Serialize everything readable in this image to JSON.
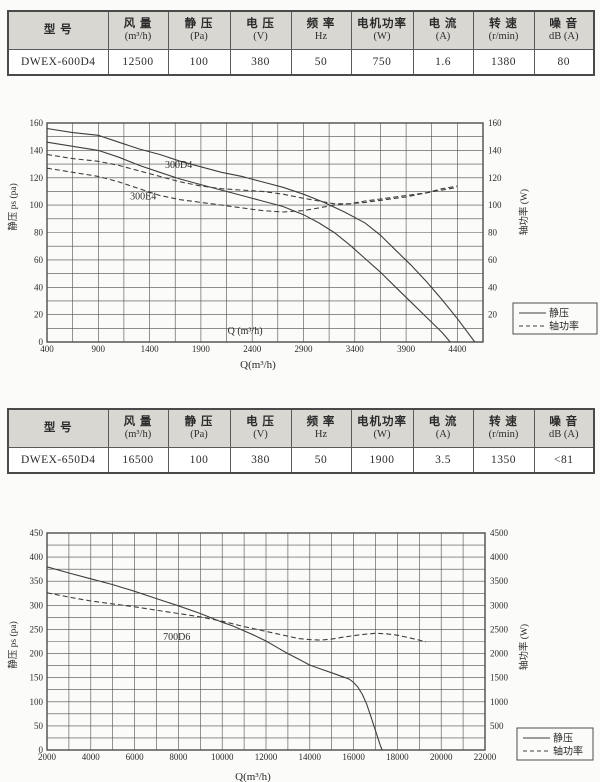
{
  "colors": {
    "header_bg": "#d8d7d2",
    "grid": "#4d4d4d",
    "line": "#3f3f3f",
    "text": "#2b2b2b"
  },
  "tables": [
    {
      "headers": [
        {
          "l1": "型  号",
          "l2": ""
        },
        {
          "l1": "风 量",
          "l2": "(m³/h)"
        },
        {
          "l1": "静 压",
          "l2": "(Pa)"
        },
        {
          "l1": "电 压",
          "l2": "(V)"
        },
        {
          "l1": "频 率",
          "l2": "Hz"
        },
        {
          "l1": "电机功率",
          "l2": "(W)"
        },
        {
          "l1": "电 流",
          "l2": "(A)"
        },
        {
          "l1": "转 速",
          "l2": "(r/min)"
        },
        {
          "l1": "噪 音",
          "l2": "dB (A)"
        }
      ],
      "row": [
        "DWEX-600D4",
        "12500",
        "100",
        "380",
        "50",
        "750",
        "1.6",
        "1380",
        "80"
      ]
    },
    {
      "headers": [
        {
          "l1": "型  号",
          "l2": ""
        },
        {
          "l1": "风 量",
          "l2": "(m³/h)"
        },
        {
          "l1": "静 压",
          "l2": "(Pa)"
        },
        {
          "l1": "电 压",
          "l2": "(V)"
        },
        {
          "l1": "频 率",
          "l2": "Hz"
        },
        {
          "l1": "电机功率",
          "l2": "(W)"
        },
        {
          "l1": "电 流",
          "l2": "(A)"
        },
        {
          "l1": "转 速",
          "l2": "(r/min)"
        },
        {
          "l1": "噪 音",
          "l2": "dB (A)"
        }
      ],
      "row": [
        "DWEX-650D4",
        "16500",
        "100",
        "380",
        "50",
        "1900",
        "3.5",
        "1350",
        "<81"
      ]
    }
  ],
  "chart_data": [
    {
      "type": "line",
      "xlabel": "Q(m³/h)",
      "ylabel_left": "静压 ps (pa)",
      "ylabel_right": "轴功率 (W)",
      "xlim": [
        400,
        4650
      ],
      "ylim_left": [
        0,
        160
      ],
      "ylim_right": [
        0,
        160
      ],
      "x_grid_step": 250,
      "y_grid_step": 10,
      "x_ticks": [
        400,
        900,
        1400,
        1900,
        2400,
        2900,
        3400,
        3900,
        4400
      ],
      "y_ticks_left": [
        0,
        20,
        40,
        60,
        80,
        100,
        120,
        140,
        160
      ],
      "y_ticks_right": [
        20,
        40,
        60,
        80,
        100,
        120,
        140,
        160
      ],
      "legend": [
        {
          "label": "静压",
          "style": "solid"
        },
        {
          "label": "轴功率",
          "style": "dashed"
        }
      ],
      "annotations": [
        {
          "text": "300D4",
          "x": 1550,
          "y": 127
        },
        {
          "text": "300E4",
          "x": 1210,
          "y": 104
        },
        {
          "text": "Q (m³/h)",
          "x": 2160,
          "y": 6
        }
      ],
      "series": [
        {
          "id": "300D4-ps",
          "name": "300D4 静压",
          "style": "solid",
          "points": [
            [
              400,
              156
            ],
            [
              650,
              153
            ],
            [
              900,
              151
            ],
            [
              1100,
              146
            ],
            [
              1300,
              141
            ],
            [
              1500,
              137
            ],
            [
              1700,
              132
            ],
            [
              1900,
              128
            ],
            [
              2100,
              124
            ],
            [
              2300,
              121
            ],
            [
              2500,
              117
            ],
            [
              2700,
              113
            ],
            [
              2900,
              108
            ],
            [
              3100,
              102
            ],
            [
              3300,
              95
            ],
            [
              3500,
              87
            ],
            [
              3650,
              78
            ],
            [
              3800,
              67
            ],
            [
              3950,
              56
            ],
            [
              4100,
              44
            ],
            [
              4250,
              31
            ],
            [
              4400,
              17
            ],
            [
              4570,
              0
            ]
          ]
        },
        {
          "id": "300E4-ps",
          "name": "300E4 静压",
          "style": "solid",
          "points": [
            [
              400,
              146
            ],
            [
              650,
              143
            ],
            [
              900,
              140
            ],
            [
              1100,
              135
            ],
            [
              1300,
              129
            ],
            [
              1500,
              124
            ],
            [
              1700,
              119
            ],
            [
              1900,
              115
            ],
            [
              2100,
              111
            ],
            [
              2300,
              107
            ],
            [
              2500,
              103
            ],
            [
              2700,
              99
            ],
            [
              2900,
              93
            ],
            [
              3050,
              87
            ],
            [
              3200,
              80
            ],
            [
              3350,
              71
            ],
            [
              3500,
              61
            ],
            [
              3650,
              51
            ],
            [
              3800,
              40
            ],
            [
              3950,
              29
            ],
            [
              4100,
              18
            ],
            [
              4250,
              7
            ],
            [
              4330,
              0
            ]
          ]
        },
        {
          "id": "300D4-power",
          "name": "300D4 轴功率",
          "style": "dashed",
          "points": [
            [
              400,
              137
            ],
            [
              650,
              134
            ],
            [
              900,
              132
            ],
            [
              1100,
              129
            ],
            [
              1300,
              125
            ],
            [
              1500,
              121
            ],
            [
              1700,
              117
            ],
            [
              1900,
              114
            ],
            [
              2100,
              112
            ],
            [
              2300,
              111
            ],
            [
              2500,
              110
            ],
            [
              2700,
              108
            ],
            [
              2900,
              105
            ],
            [
              3050,
              103
            ],
            [
              3200,
              101
            ],
            [
              3350,
              101
            ],
            [
              3500,
              102
            ],
            [
              3700,
              104
            ],
            [
              3900,
              106
            ],
            [
              4100,
              109
            ],
            [
              4250,
              111
            ],
            [
              4400,
              113
            ]
          ]
        },
        {
          "id": "300E4-power",
          "name": "300E4 轴功率",
          "style": "dashed",
          "points": [
            [
              400,
              127
            ],
            [
              650,
              124
            ],
            [
              900,
              121
            ],
            [
              1100,
              117
            ],
            [
              1300,
              112
            ],
            [
              1500,
              107
            ],
            [
              1700,
              104
            ],
            [
              1900,
              102
            ],
            [
              2100,
              100
            ],
            [
              2300,
              98
            ],
            [
              2500,
              96
            ],
            [
              2700,
              95
            ],
            [
              2900,
              96
            ],
            [
              3050,
              98
            ],
            [
              3200,
              100
            ],
            [
              3350,
              101
            ],
            [
              3500,
              103
            ],
            [
              3700,
              105
            ],
            [
              3900,
              107
            ],
            [
              4100,
              109
            ],
            [
              4250,
              112
            ],
            [
              4400,
              114
            ]
          ]
        }
      ]
    },
    {
      "type": "line",
      "xlabel": "Q(m³/h)",
      "ylabel_left": "静压 ps (pa)",
      "ylabel_right": "轴功率 (W)",
      "xlim": [
        2000,
        22000
      ],
      "ylim_left": [
        0,
        450
      ],
      "ylim_right": [
        0,
        4500
      ],
      "x_grid_step": 1000,
      "y_grid_step": 25,
      "x_ticks": [
        2000,
        4000,
        6000,
        8000,
        10000,
        12000,
        14000,
        16000,
        18000,
        20000,
        22000
      ],
      "y_ticks_left": [
        0,
        50,
        100,
        150,
        200,
        250,
        300,
        350,
        400,
        450
      ],
      "y_ticks_right": [
        500,
        1000,
        1500,
        2000,
        2500,
        3000,
        3500,
        4000,
        4500
      ],
      "legend": [
        {
          "label": "静压",
          "style": "solid"
        },
        {
          "label": "轴功率",
          "style": "dashed"
        }
      ],
      "annotations": [
        {
          "text": "700D6",
          "x": 7300,
          "y": 228
        }
      ],
      "series": [
        {
          "id": "700D6-ps",
          "name": "700D6 静压",
          "style": "solid",
          "points": [
            [
              2000,
              380
            ],
            [
              3000,
              367
            ],
            [
              4000,
              355
            ],
            [
              5000,
              343
            ],
            [
              6000,
              329
            ],
            [
              7000,
              314
            ],
            [
              8000,
              299
            ],
            [
              9000,
              283
            ],
            [
              10000,
              265
            ],
            [
              10500,
              257
            ],
            [
              11000,
              247
            ],
            [
              11500,
              237
            ],
            [
              12000,
              226
            ],
            [
              12500,
              213
            ],
            [
              13000,
              200
            ],
            [
              13500,
              188
            ],
            [
              14000,
              176
            ],
            [
              14500,
              168
            ],
            [
              15000,
              160
            ],
            [
              15500,
              152
            ],
            [
              15800,
              147
            ],
            [
              16000,
              140
            ],
            [
              16200,
              130
            ],
            [
              16400,
              115
            ],
            [
              16600,
              95
            ],
            [
              16800,
              68
            ],
            [
              17000,
              40
            ],
            [
              17200,
              12
            ],
            [
              17300,
              0
            ]
          ]
        },
        {
          "id": "700D6-power",
          "name": "700D6 轴功率",
          "style": "dashed",
          "points": [
            [
              2000,
              326
            ],
            [
              3000,
              317
            ],
            [
              4000,
              309
            ],
            [
              5000,
              303
            ],
            [
              6000,
              297
            ],
            [
              7000,
              290
            ],
            [
              8000,
              283
            ],
            [
              9000,
              276
            ],
            [
              10000,
              267
            ],
            [
              11000,
              256
            ],
            [
              12000,
              246
            ],
            [
              12500,
              241
            ],
            [
              13000,
              236
            ],
            [
              13500,
              231
            ],
            [
              14000,
              229
            ],
            [
              14500,
              228
            ],
            [
              15000,
              230
            ],
            [
              15500,
              234
            ],
            [
              16000,
              237
            ],
            [
              16500,
              240
            ],
            [
              17000,
              242
            ],
            [
              17500,
              241
            ],
            [
              18000,
              238
            ],
            [
              18500,
              233
            ],
            [
              19000,
              228
            ],
            [
              19300,
              224
            ]
          ]
        }
      ]
    }
  ]
}
